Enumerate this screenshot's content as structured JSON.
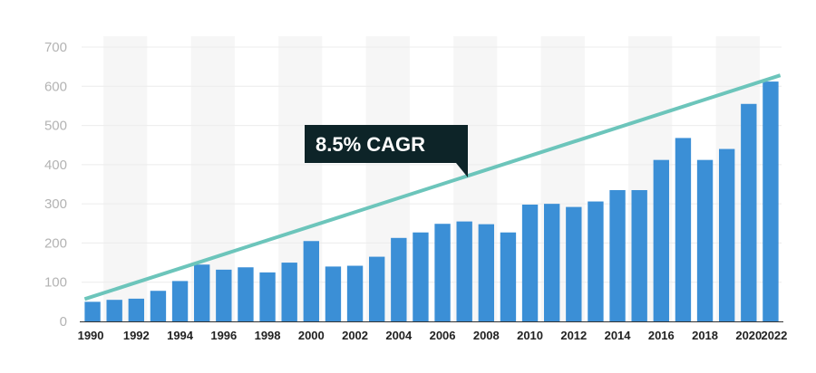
{
  "chart_data": {
    "type": "bar",
    "x": [
      1990,
      1991,
      1992,
      1993,
      1994,
      1995,
      1996,
      1997,
      1998,
      1999,
      2000,
      2001,
      2002,
      2003,
      2004,
      2005,
      2006,
      2007,
      2008,
      2009,
      2010,
      2011,
      2012,
      2013,
      2014,
      2015,
      2016,
      2017,
      2018,
      2019,
      2020,
      2021
    ],
    "values": [
      50,
      55,
      58,
      78,
      103,
      145,
      132,
      138,
      125,
      150,
      205,
      140,
      142,
      165,
      213,
      227,
      249,
      255,
      248,
      227,
      298,
      300,
      292,
      306,
      335,
      335,
      412,
      468,
      412,
      440,
      555,
      612
    ],
    "xtick_labels": [
      "1990",
      "1992",
      "1994",
      "1996",
      "1998",
      "2000",
      "2002",
      "2004",
      "2006",
      "2008",
      "2010",
      "2012",
      "2014",
      "2016",
      "2018",
      "2020",
      "2022"
    ],
    "ytick_labels": [
      "0",
      "100",
      "200",
      "300",
      "400",
      "500",
      "600",
      "700"
    ],
    "ylim": [
      0,
      700
    ],
    "trendline": {
      "start_value": 57,
      "end_value": 628
    },
    "annotation": "8.5% CAGR",
    "bar_color": "#3b8fd6",
    "trend_color": "#6cc5bb",
    "annotation_bg": "#0d2428",
    "band_color": "#f6f6f6",
    "grid": true
  }
}
